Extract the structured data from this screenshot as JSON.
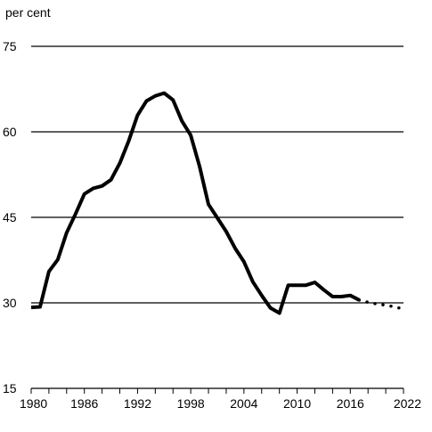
{
  "chart_data": {
    "type": "line",
    "ylabel": "per cent",
    "xlabel": "",
    "title": "",
    "xlim": [
      1980,
      2022
    ],
    "ylim": [
      15,
      75
    ],
    "x_ticks": [
      1980,
      1986,
      1992,
      1998,
      2004,
      2010,
      2016,
      2022
    ],
    "y_ticks": [
      15,
      30,
      45,
      60,
      75
    ],
    "grid": "horizontal",
    "series": [
      {
        "style": "solid",
        "color": "#000000",
        "x": [
          1980,
          1981,
          1982,
          1983,
          1984,
          1985,
          1986,
          1987,
          1988,
          1989,
          1990,
          1991,
          1992,
          1993,
          1994,
          1995,
          1996,
          1997,
          1998,
          1999,
          2000,
          2001,
          2002,
          2003,
          2004,
          2005,
          2006,
          2007,
          2008,
          2009,
          2010,
          2011,
          2012,
          2013,
          2014,
          2015,
          2016,
          2017
        ],
        "y": [
          29.2,
          29.3,
          35.5,
          37.6,
          42.3,
          45.6,
          49.1,
          50.1,
          50.5,
          51.6,
          54.5,
          58.4,
          62.9,
          65.4,
          66.3,
          66.8,
          65.6,
          61.9,
          59.4,
          53.9,
          47.3,
          44.9,
          42.5,
          39.6,
          37.2,
          33.7,
          31.3,
          29.1,
          28.2,
          33.1,
          33.1,
          33.1,
          33.6,
          32.3,
          31.1,
          31.1,
          31.3,
          30.5
        ]
      },
      {
        "style": "dotted",
        "color": "#000000",
        "x": [
          2017,
          2018,
          2019,
          2020,
          2021,
          2022
        ],
        "y": [
          30.5,
          30.1,
          29.8,
          29.6,
          29.3,
          28.9
        ]
      }
    ]
  }
}
